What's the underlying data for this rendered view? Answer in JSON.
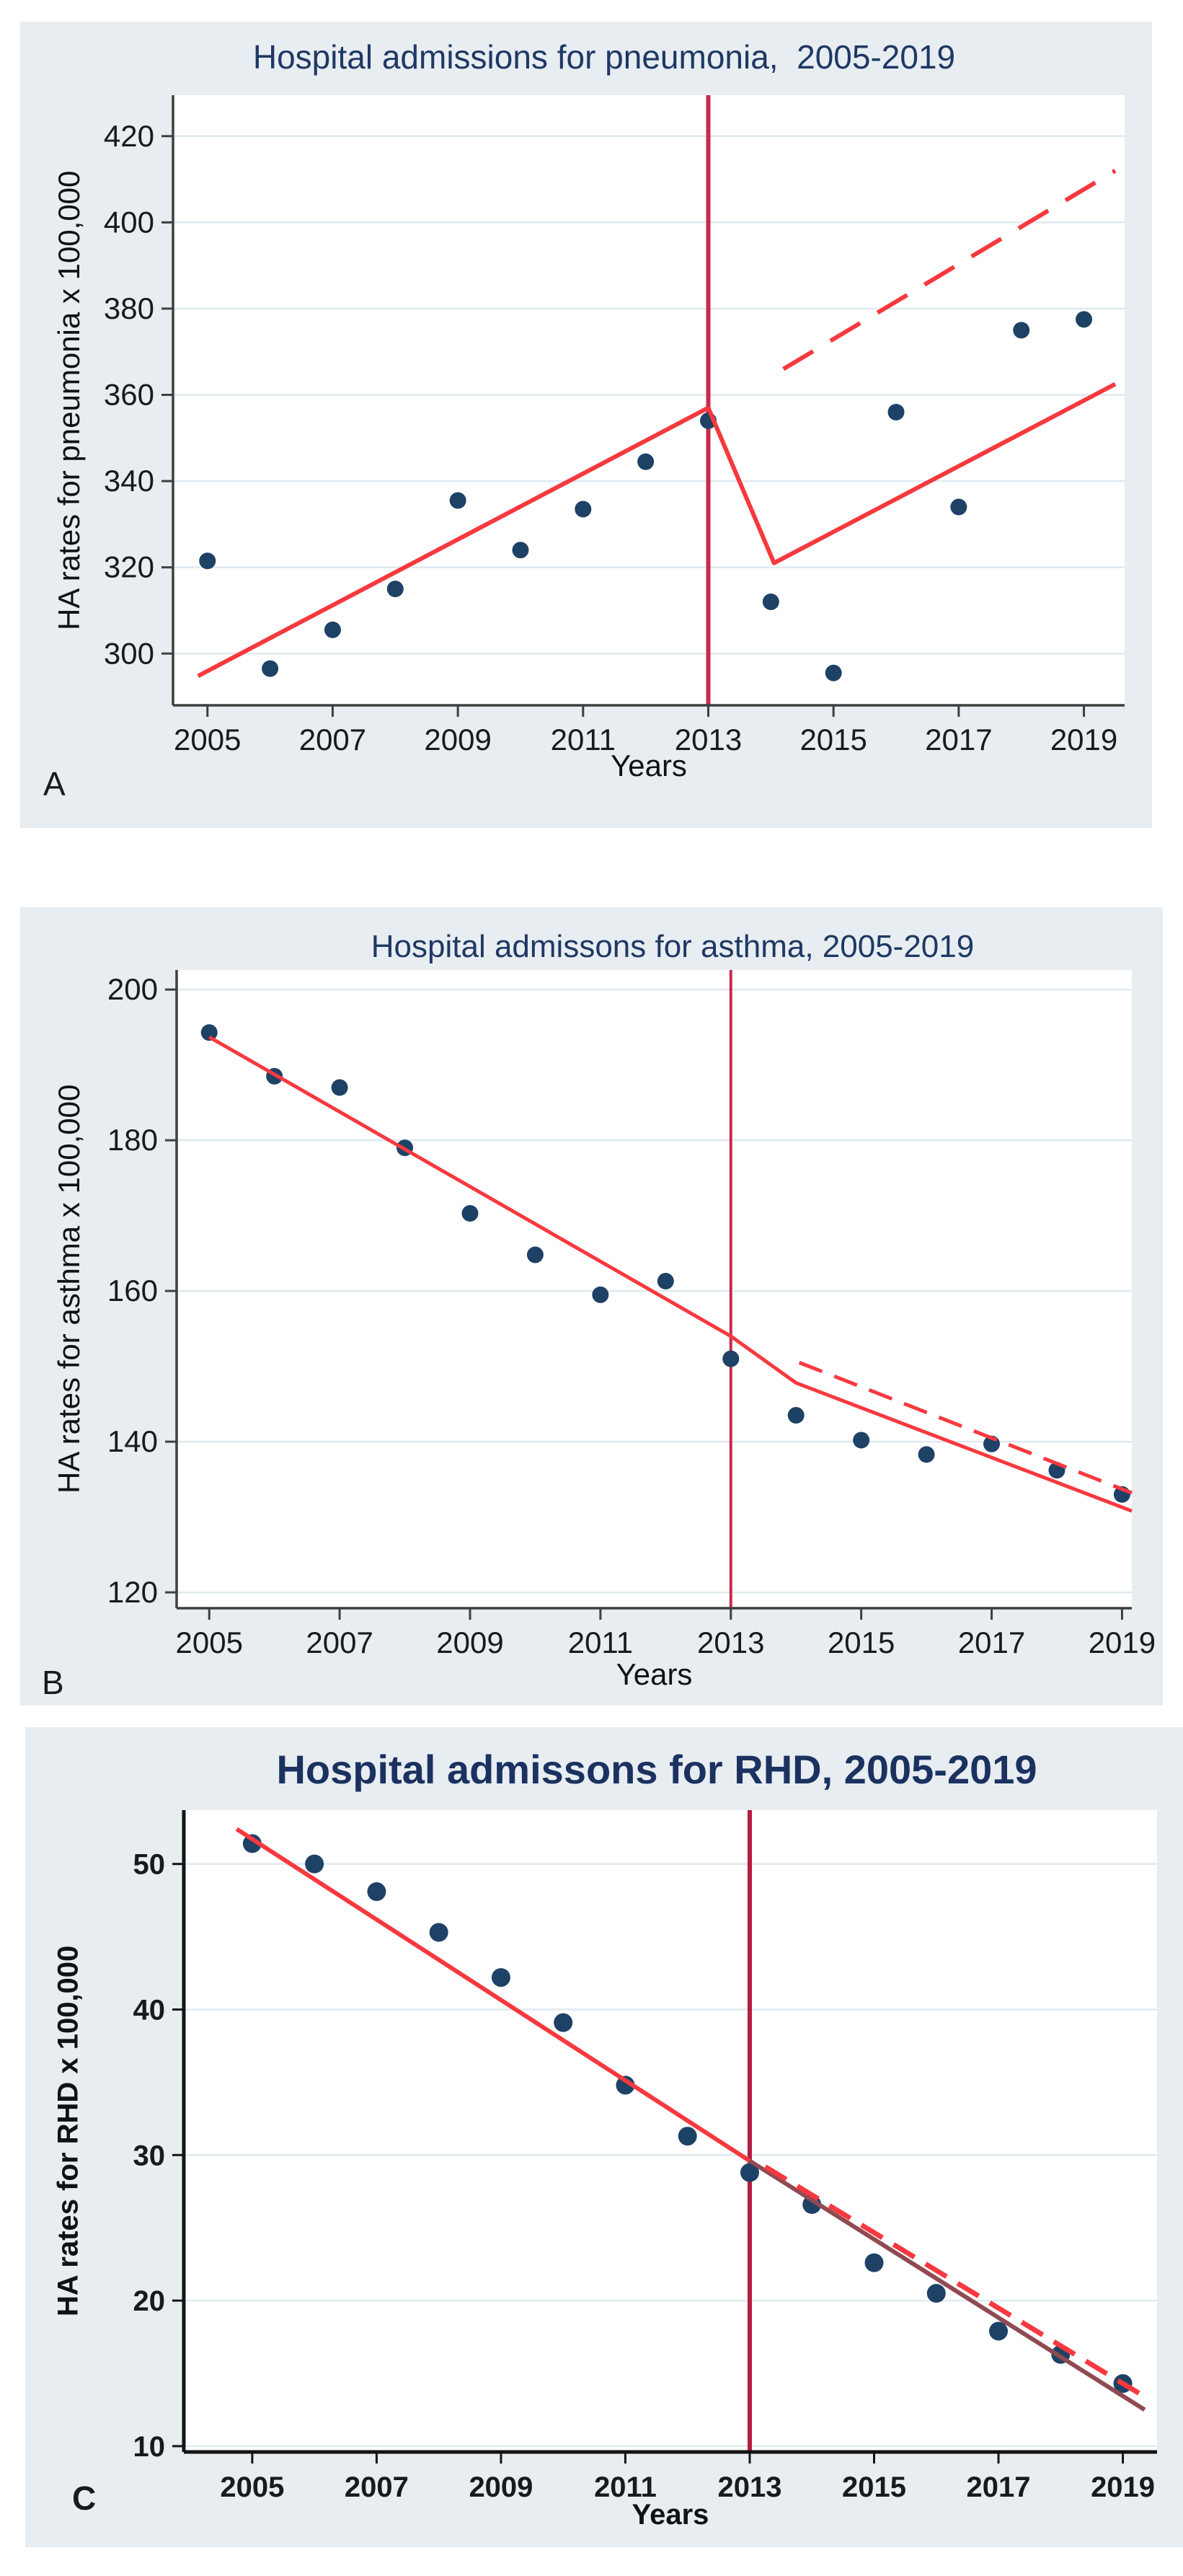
{
  "colors": {
    "panel_bg": "#e7edf1",
    "plot_bg": "#ffffff",
    "grid": "#dfeaf0",
    "axis": "#3f3f3f",
    "axis_dark": "#141414",
    "title": "#1f3864",
    "point": "#1e4166",
    "trend": "#f6393f",
    "vline": "#c62b4c",
    "vline_dark": "#b51d40",
    "maroon": "#8f4a52",
    "tick": "#1a1a1a"
  },
  "chart_data": [
    {
      "id": "A",
      "type": "scatter",
      "title": "Hospital admissions for pneumonia,  2005-2019",
      "panel_label": "A",
      "xlabel": "Years",
      "ylabel": "HA rates for pneumonia x 100,000",
      "x_ticks": [
        2005,
        2007,
        2009,
        2011,
        2013,
        2015,
        2017,
        2019
      ],
      "y_ticks": [
        300,
        320,
        340,
        360,
        380,
        400,
        420
      ],
      "xlim": [
        2004.45,
        2019.65
      ],
      "ylim": [
        288,
        429.5
      ],
      "grid": "horizontal",
      "legend": "none",
      "intervention": {
        "x": 2013,
        "color": "vline"
      },
      "series": [
        {
          "name": "Observed HA rates for pneumonia",
          "type": "scatter",
          "color": "point",
          "x": [
            2005,
            2006,
            2007,
            2008,
            2009,
            2010,
            2011,
            2012,
            2013,
            2014,
            2015,
            2016,
            2017,
            2018,
            2019
          ],
          "y": [
            321.5,
            296.5,
            305.5,
            315,
            335.5,
            324,
            333.5,
            344.5,
            354,
            312,
            295.5,
            356,
            334,
            375,
            377.5
          ]
        },
        {
          "name": "Fitted trend pre-intervention",
          "type": "line",
          "style": "solid",
          "color": "trend",
          "points": [
            [
              2004.85,
              294.8
            ],
            [
              2013,
              357
            ]
          ]
        },
        {
          "name": "Fitted trend post-intervention",
          "type": "line",
          "style": "solid",
          "color": "trend",
          "points": [
            [
              2013,
              357
            ],
            [
              2014.05,
              321
            ],
            [
              2019.5,
              362.5
            ]
          ]
        },
        {
          "name": "Counterfactual projected pre-trend",
          "type": "line",
          "style": "dashed",
          "color": "trend",
          "points": [
            [
              2014.2,
              366
            ],
            [
              2019.5,
              412
            ]
          ]
        }
      ]
    },
    {
      "id": "B",
      "type": "scatter",
      "title": "Hospital admissons for asthma, 2005-2019",
      "panel_label": "B",
      "xlabel": "Years",
      "ylabel": "HA rates for asthma x 100,000",
      "x_ticks": [
        2005,
        2007,
        2009,
        2011,
        2013,
        2015,
        2017,
        2019
      ],
      "y_ticks": [
        120,
        140,
        160,
        180,
        200
      ],
      "xlim": [
        2004.5,
        2019.15
      ],
      "ylim": [
        117.9,
        202.6
      ],
      "grid": "horizontal",
      "legend": "none",
      "intervention": {
        "x": 2013,
        "color": "vline"
      },
      "series": [
        {
          "name": "Observed HA rates for asthma",
          "type": "scatter",
          "color": "point",
          "x": [
            2005,
            2006,
            2007,
            2008,
            2009,
            2010,
            2011,
            2012,
            2013,
            2014,
            2015,
            2016,
            2017,
            2018,
            2019
          ],
          "y": [
            194.3,
            188.5,
            187,
            179,
            170.3,
            164.8,
            159.5,
            161.3,
            151,
            143.5,
            140.2,
            138.3,
            139.7,
            136.2,
            133
          ]
        },
        {
          "name": "Fitted trend pre-intervention",
          "type": "line",
          "style": "solid",
          "color": "trend",
          "points": [
            [
              2005,
              193.7
            ],
            [
              2013,
              154
            ]
          ]
        },
        {
          "name": "Fitted trend post-intervention",
          "type": "line",
          "style": "solid",
          "color": "trend",
          "points": [
            [
              2013,
              154
            ],
            [
              2014,
              147.8
            ],
            [
              2019.15,
              130.8
            ]
          ]
        },
        {
          "name": "Counterfactual projected pre-trend",
          "type": "line",
          "style": "dashed",
          "color": "trend",
          "points": [
            [
              2014.05,
              150.5
            ],
            [
              2019.15,
              133.2
            ]
          ]
        }
      ]
    },
    {
      "id": "C",
      "type": "scatter",
      "title": "Hospital admissons for RHD, 2005-2019",
      "panel_label": "C",
      "xlabel": "Years",
      "ylabel": "HA rates for RHD x 100,000",
      "x_ticks": [
        2005,
        2007,
        2009,
        2011,
        2013,
        2015,
        2017,
        2019
      ],
      "y_ticks": [
        10,
        20,
        30,
        40,
        50
      ],
      "xlim": [
        2003.9,
        2019.55
      ],
      "ylim": [
        9.6,
        53.7
      ],
      "grid": "horizontal",
      "legend": "none",
      "intervention": {
        "x": 2013,
        "color": "vline_dark"
      },
      "series": [
        {
          "name": "Observed HA rates for RHD",
          "type": "scatter",
          "color": "point",
          "x": [
            2005,
            2006,
            2007,
            2008,
            2009,
            2010,
            2011,
            2012,
            2013,
            2014,
            2015,
            2016,
            2017,
            2018,
            2019
          ],
          "y": [
            51.4,
            50,
            48.1,
            45.3,
            42.2,
            39.1,
            34.8,
            31.3,
            28.8,
            26.6,
            22.6,
            20.5,
            17.9,
            16.3,
            14.3
          ]
        },
        {
          "name": "Fitted trend pre-intervention",
          "type": "line",
          "style": "solid",
          "color": "trend",
          "points": [
            [
              2004.75,
              52.4
            ],
            [
              2013,
              29.6
            ]
          ]
        },
        {
          "name": "Fitted trend post-intervention",
          "type": "line",
          "style": "solid",
          "color": "maroon",
          "points": [
            [
              2013,
              29.6
            ],
            [
              2019.35,
              12.5
            ]
          ]
        },
        {
          "name": "Counterfactual projected pre-trend",
          "type": "line",
          "style": "dashed",
          "color": "trend",
          "points": [
            [
              2013.25,
              29.2
            ],
            [
              2019.35,
              13.4
            ]
          ]
        }
      ]
    }
  ]
}
